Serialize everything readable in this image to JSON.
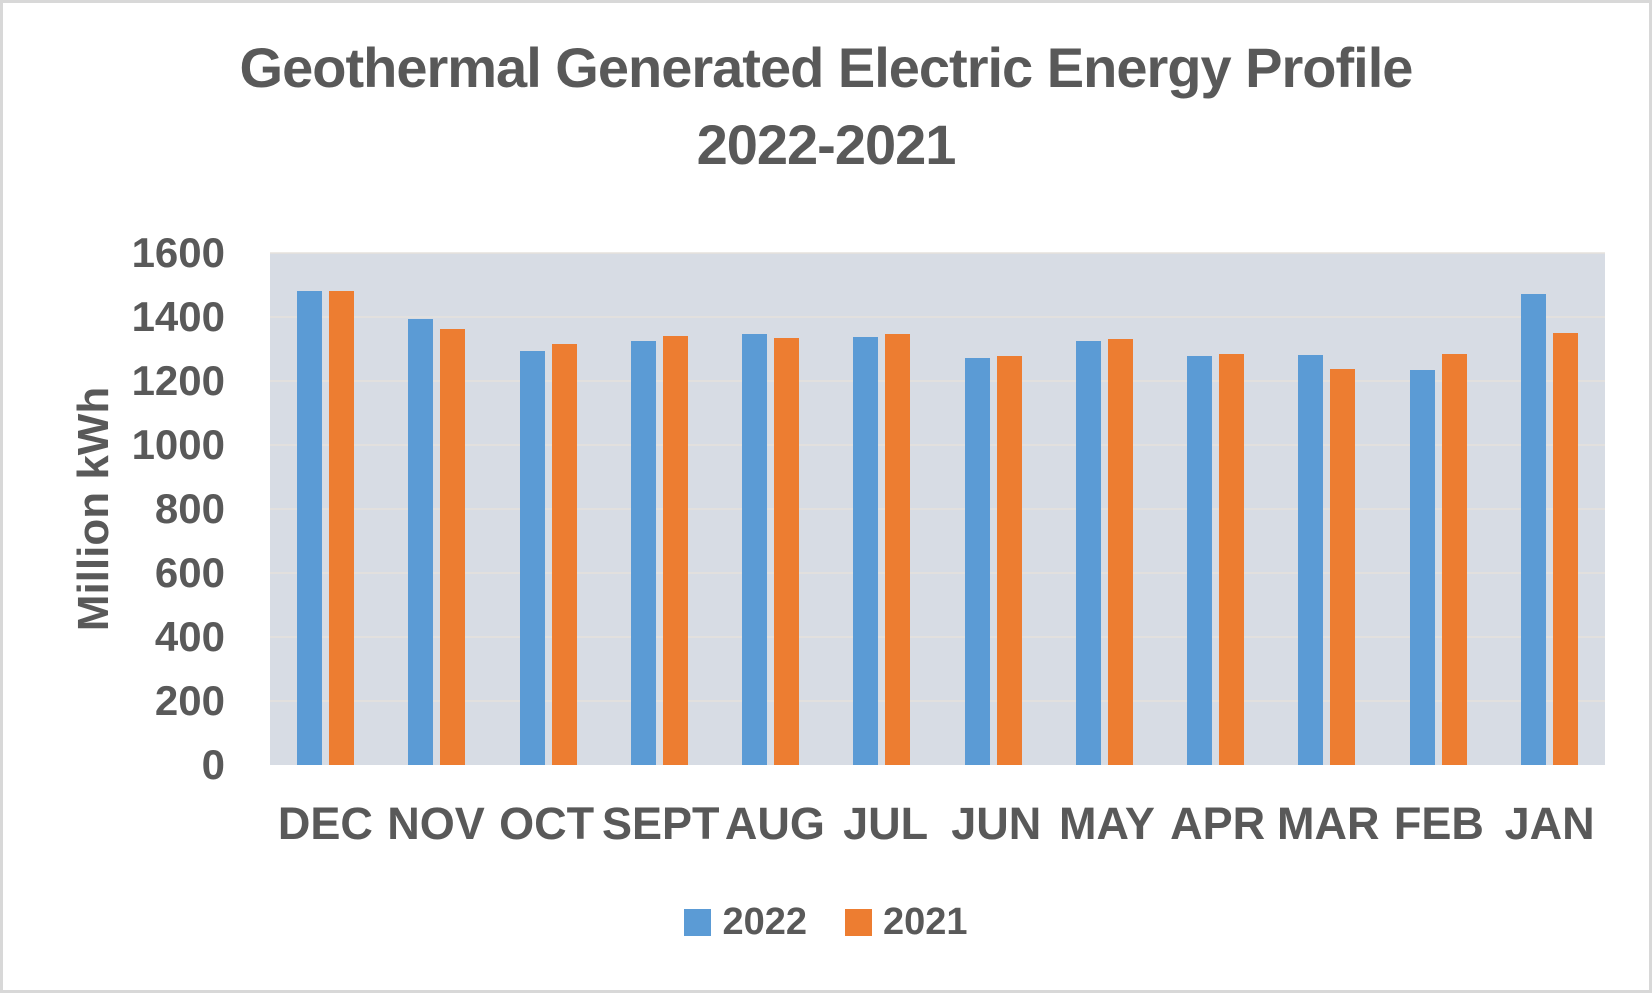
{
  "title": {
    "line1": "Geothermal Generated Electric Energy Profile",
    "line2": "2022-2021"
  },
  "y_axis": {
    "title": "Million kWh",
    "ticks": [
      0,
      200,
      400,
      600,
      800,
      1000,
      1200,
      1400,
      1600
    ]
  },
  "legend": {
    "items": [
      "2022",
      "2021"
    ]
  },
  "colors": {
    "series_2022": "#5B9BD5",
    "series_2021": "#ED7D31",
    "plot_background": "#D7DCE4",
    "gridline": "#E5E2DC",
    "text": "#595959"
  },
  "chart_data": {
    "type": "bar",
    "title": "Geothermal Generated Electric Energy Profile 2022-2021",
    "categories": [
      "DEC",
      "NOV",
      "OCT",
      "SEPT",
      "AUG",
      "JUL",
      "JUN",
      "MAY",
      "APR",
      "MAR",
      "FEB",
      "JAN"
    ],
    "series": [
      {
        "name": "2022",
        "color": "#5B9BD5",
        "values": [
          1480,
          1395,
          1293,
          1325,
          1347,
          1338,
          1271,
          1324,
          1278,
          1281,
          1235,
          1472
        ]
      },
      {
        "name": "2021",
        "color": "#ED7D31",
        "values": [
          1481,
          1364,
          1316,
          1341,
          1335,
          1347,
          1277,
          1332,
          1284,
          1237,
          1285,
          1351
        ]
      }
    ],
    "xlabel": "",
    "ylabel": "Million kWh",
    "ylim": [
      0,
      1600
    ],
    "ytick_step": 200,
    "grid": true,
    "legend_position": "bottom"
  }
}
